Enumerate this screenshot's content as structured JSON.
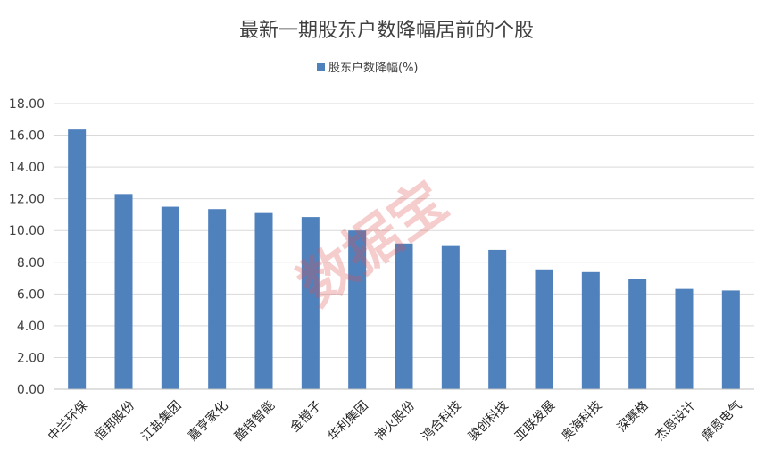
{
  "chart_data": {
    "type": "bar",
    "title": "最新一期股东户数降幅居前的个股",
    "legend": [
      "股东户数降幅(%)"
    ],
    "legend_position": "top",
    "series": [
      {
        "name": "股东户数降幅(%)",
        "color": "#4f81bd",
        "values": [
          16.36,
          12.3,
          11.5,
          11.35,
          11.1,
          10.85,
          10.0,
          9.18,
          9.02,
          8.78,
          7.55,
          7.38,
          6.95,
          6.32,
          6.22
        ]
      }
    ],
    "categories": [
      "中兰环保",
      "恒邦股份",
      "江盐集团",
      "嘉亨家化",
      "酷特智能",
      "金橙子",
      "华利集团",
      "神火股份",
      "鸿合科技",
      "骏创科技",
      "亚联发展",
      "奥海科技",
      "深赛格",
      "杰恩设计",
      "摩恩电气"
    ],
    "yticks": [
      "0.00",
      "2.00",
      "4.00",
      "6.00",
      "8.00",
      "10.00",
      "12.00",
      "14.00",
      "16.00",
      "18.00"
    ],
    "ylim": [
      0,
      18
    ],
    "grid": true,
    "xlabel": "",
    "ylabel": ""
  },
  "watermark": "数据宝"
}
